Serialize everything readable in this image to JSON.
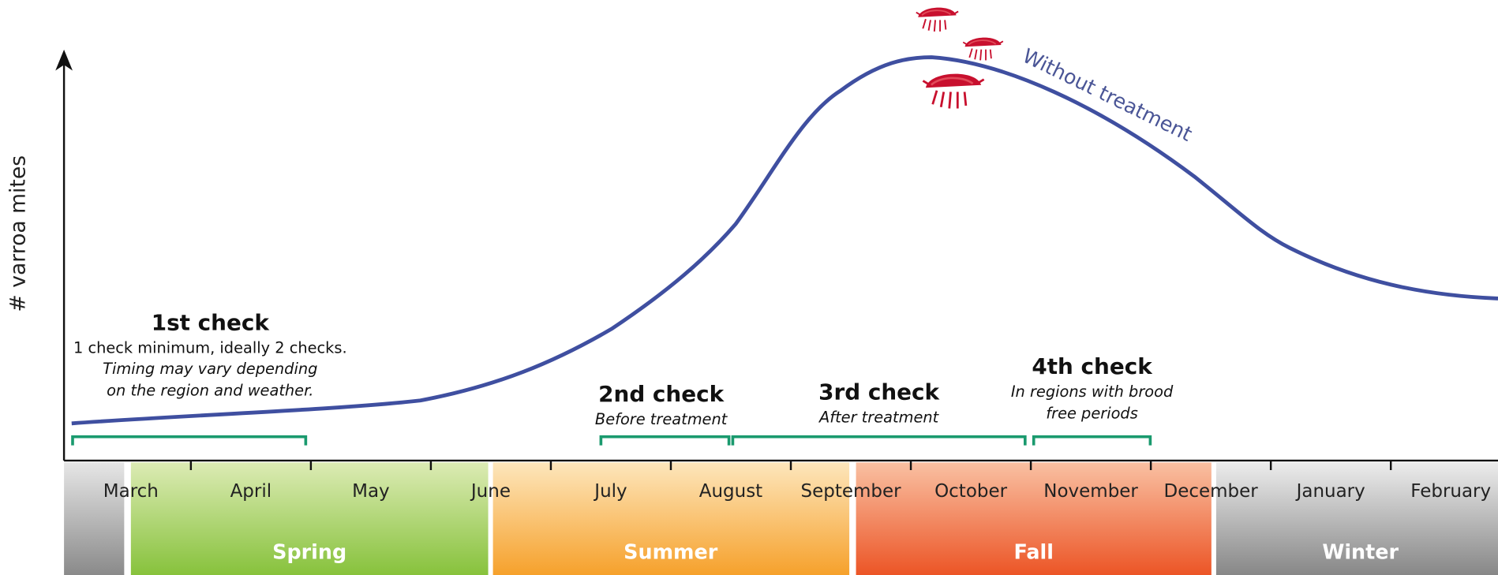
{
  "y_axis_label": "# varroa mites",
  "curve_label": "Without treatment",
  "months": [
    "March",
    "April",
    "May",
    "June",
    "July",
    "August",
    "September",
    "October",
    "November",
    "December",
    "January",
    "February"
  ],
  "seasons": [
    "Spring",
    "Summer",
    "Fall",
    "Winter"
  ],
  "checks": [
    {
      "title": "1st check",
      "detail": "1 check minimum, ideally 2 checks.",
      "notes": [
        "Timing may vary depending",
        "on the region and weather."
      ]
    },
    {
      "title": "2nd check",
      "notes": [
        "Before treatment"
      ]
    },
    {
      "title": "3rd check",
      "notes": [
        "After treatment"
      ]
    },
    {
      "title": "4th check",
      "notes": [
        "In regions with brood",
        "free periods"
      ]
    }
  ]
}
